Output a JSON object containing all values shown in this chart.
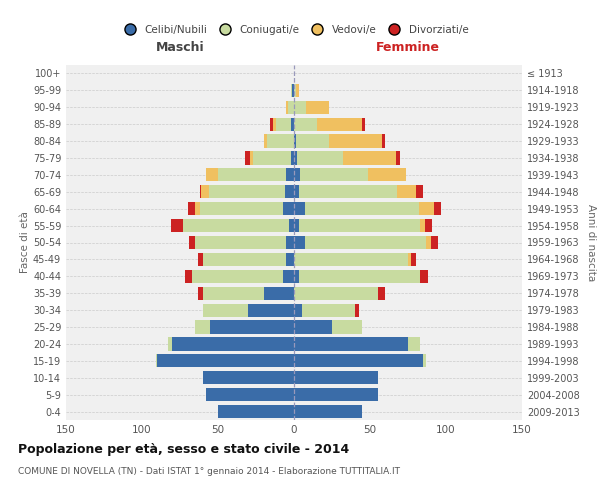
{
  "age_groups": [
    "0-4",
    "5-9",
    "10-14",
    "15-19",
    "20-24",
    "25-29",
    "30-34",
    "35-39",
    "40-44",
    "45-49",
    "50-54",
    "55-59",
    "60-64",
    "65-69",
    "70-74",
    "75-79",
    "80-84",
    "85-89",
    "90-94",
    "95-99",
    "100+"
  ],
  "birth_years": [
    "2009-2013",
    "2004-2008",
    "1999-2003",
    "1994-1998",
    "1989-1993",
    "1984-1988",
    "1979-1983",
    "1974-1978",
    "1969-1973",
    "1964-1968",
    "1959-1963",
    "1954-1958",
    "1949-1953",
    "1944-1948",
    "1939-1943",
    "1934-1938",
    "1929-1933",
    "1924-1928",
    "1919-1923",
    "1914-1918",
    "≤ 1913"
  ],
  "male": {
    "celibi": [
      50,
      58,
      60,
      90,
      80,
      55,
      30,
      20,
      7,
      5,
      5,
      3,
      7,
      6,
      5,
      2,
      0,
      2,
      0,
      1,
      0
    ],
    "coniugati": [
      0,
      0,
      0,
      1,
      3,
      10,
      30,
      40,
      60,
      55,
      60,
      70,
      55,
      50,
      45,
      25,
      18,
      10,
      4,
      1,
      0
    ],
    "vedovi": [
      0,
      0,
      0,
      0,
      0,
      0,
      0,
      0,
      0,
      0,
      0,
      0,
      3,
      5,
      8,
      2,
      2,
      2,
      1,
      0,
      0
    ],
    "divorziati": [
      0,
      0,
      0,
      0,
      0,
      0,
      0,
      3,
      5,
      3,
      4,
      8,
      5,
      1,
      0,
      3,
      0,
      2,
      0,
      0,
      0
    ]
  },
  "female": {
    "nubili": [
      45,
      55,
      55,
      85,
      75,
      25,
      5,
      0,
      3,
      0,
      7,
      3,
      7,
      3,
      4,
      2,
      1,
      0,
      0,
      0,
      0
    ],
    "coniugate": [
      0,
      0,
      0,
      2,
      8,
      20,
      35,
      55,
      80,
      75,
      80,
      80,
      75,
      65,
      45,
      30,
      22,
      15,
      8,
      1,
      0
    ],
    "vedove": [
      0,
      0,
      0,
      0,
      0,
      0,
      0,
      0,
      0,
      2,
      3,
      3,
      10,
      12,
      25,
      35,
      35,
      30,
      15,
      2,
      0
    ],
    "divorziate": [
      0,
      0,
      0,
      0,
      0,
      0,
      3,
      5,
      5,
      3,
      5,
      5,
      5,
      5,
      0,
      3,
      2,
      2,
      0,
      0,
      0
    ]
  },
  "colors": {
    "celibi": "#3a6ca8",
    "coniugati": "#c8dba0",
    "vedovi": "#f0c060",
    "divorziati": "#cc2222"
  },
  "title": "Popolazione per età, sesso e stato civile - 2014",
  "subtitle": "COMUNE DI NOVELLA (TN) - Dati ISTAT 1° gennaio 2014 - Elaborazione TUTTITALIA.IT",
  "xlabel_left": "Maschi",
  "xlabel_right": "Femmine",
  "ylabel_left": "Fasce di età",
  "ylabel_right": "Anni di nascita",
  "xlim": 150,
  "background": "#f0f0f0",
  "legend_labels": [
    "Celibi/Nubili",
    "Coniugati/e",
    "Vedovi/e",
    "Divorziati/e"
  ]
}
